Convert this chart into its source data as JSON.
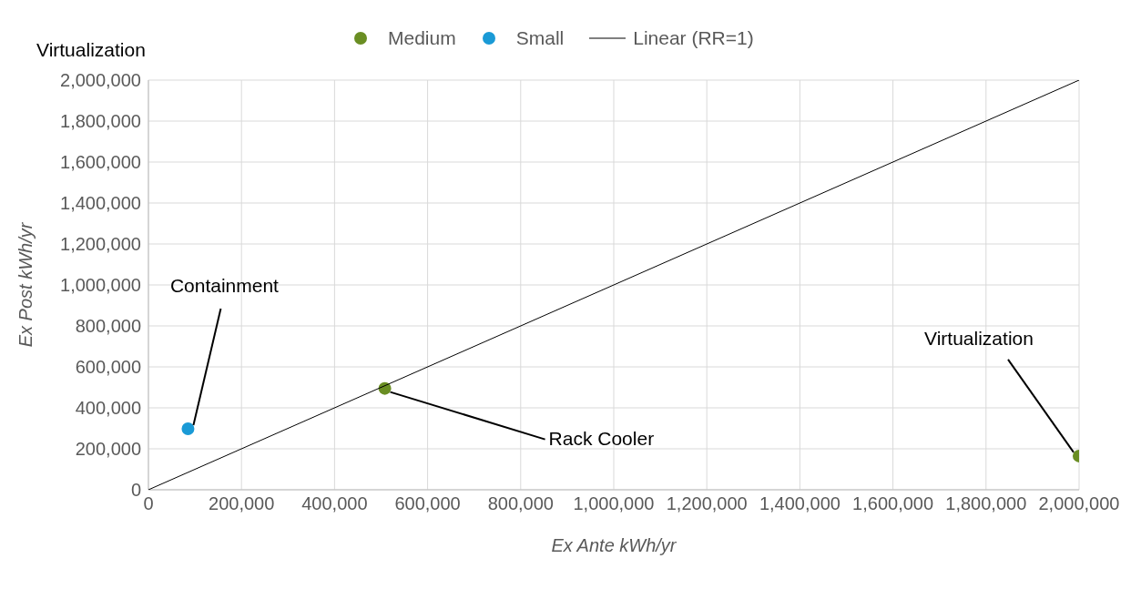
{
  "chart_data": {
    "type": "scatter",
    "title": "Virtualization",
    "xlabel": "Ex Ante kWh/yr",
    "ylabel": "Ex Post kWh/yr",
    "xlim": [
      0,
      2000000
    ],
    "xticks": [
      0,
      {
        "value": 200000,
        "label": "200,000"
      },
      {
        "value": 400000,
        "label": "400,000"
      },
      {
        "value": 600000,
        "label": "600,000"
      },
      {
        "value": 800000,
        "label": "800,000"
      },
      {
        "value": 1000000,
        "label": "1,000,000"
      },
      {
        "value": 1200000,
        "label": "1,200,000"
      },
      {
        "value": 1400000,
        "label": "1,400,000"
      },
      {
        "value": 1600000,
        "label": "1,600,000"
      },
      {
        "value": 1800000,
        "label": "1,800,000"
      },
      {
        "value": 2000000,
        "label": "2,000,000"
      }
    ],
    "ylim": [
      0,
      2000000
    ],
    "yticks": [
      0,
      {
        "value": 200000,
        "label": "200,000"
      },
      {
        "value": 400000,
        "label": "400,000"
      },
      {
        "value": 600000,
        "label": "600,000"
      },
      {
        "value": 800000,
        "label": "800,000"
      },
      {
        "value": 1000000,
        "label": "1,000,000"
      },
      {
        "value": 1200000,
        "label": "1,200,000"
      },
      {
        "value": 1400000,
        "label": "1,400,000"
      },
      {
        "value": 1600000,
        "label": "1,600,000"
      },
      {
        "value": 1800000,
        "label": "1,800,000"
      },
      {
        "value": 2000000,
        "label": "2,000,000"
      }
    ],
    "grid": true,
    "legend": "top",
    "marker": "circle",
    "series": [
      {
        "name": "Medium",
        "color": "#6a8e23",
        "x": [
          508000,
          2000000
        ],
        "values": [
          495000,
          165000
        ]
      },
      {
        "name": "Small",
        "color": "#1a9ad6",
        "x": [
          85000
        ],
        "values": [
          298000
        ]
      },
      {
        "name": "Linear (RR=1)",
        "type": "line",
        "color": "#000000",
        "x": [
          0,
          2000000
        ],
        "values": [
          0,
          2000000
        ],
        "marker": "none",
        "line_style": "solid"
      }
    ],
    "annotations": [
      {
        "text": "Containment",
        "x": 85000,
        "y": 298000
      },
      {
        "text": "Rack Cooler",
        "x": 508000,
        "y": 495000
      },
      {
        "text": "Virtualization",
        "x": 2000000,
        "y": 165000
      }
    ]
  }
}
